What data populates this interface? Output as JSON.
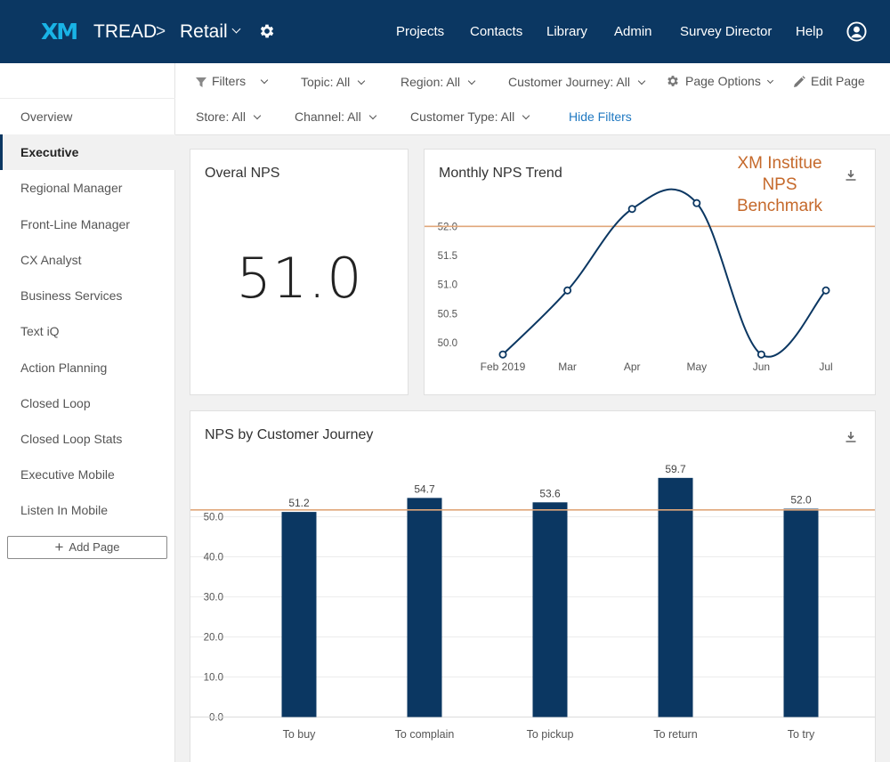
{
  "header": {
    "logo": "XM",
    "brand": "TREAD",
    "separator": ">",
    "project": "Retail",
    "nav": [
      "Projects",
      "Contacts",
      "Library",
      "Admin",
      "Survey Director",
      "Help"
    ]
  },
  "sidebar": {
    "items": [
      {
        "label": "Overview",
        "active": false
      },
      {
        "label": "Executive",
        "active": true
      },
      {
        "label": "Regional Manager",
        "active": false
      },
      {
        "label": "Front-Line Manager",
        "active": false
      },
      {
        "label": "CX Analyst",
        "active": false
      },
      {
        "label": "Business Services",
        "active": false
      },
      {
        "label": "Text iQ",
        "active": false
      },
      {
        "label": "Action Planning",
        "active": false
      },
      {
        "label": "Closed Loop",
        "active": false
      },
      {
        "label": "Closed Loop Stats",
        "active": false
      },
      {
        "label": "Executive Mobile",
        "active": false
      },
      {
        "label": "Listen In Mobile",
        "active": false
      }
    ],
    "add_page_label": "Add Page"
  },
  "filters": {
    "filters_label": "Filters",
    "topic": "Topic:  All",
    "region": "Region:  All",
    "journey": "Customer Journey:  All",
    "page_options": "Page Options",
    "edit_page": "Edit Page",
    "store": "Store:  All",
    "channel": "Channel:  All",
    "customer_type": "Customer Type:  All",
    "hide_filters": "Hide Filters"
  },
  "overall_nps": {
    "title": "Overal NPS",
    "value": "51.0"
  },
  "annotation": {
    "line1": "XM Institue",
    "line2": "NPS",
    "line3": "Benchmark"
  },
  "colors": {
    "navy": "#0b3762",
    "benchmark": "#e0a77a",
    "annotation": "#c5692b",
    "link": "#1f78c1"
  },
  "chart_data": [
    {
      "type": "line",
      "title": "Monthly NPS Trend",
      "categories": [
        "Feb 2019",
        "Mar",
        "Apr",
        "May",
        "Jun",
        "Jul"
      ],
      "values": [
        49.8,
        50.9,
        52.3,
        52.4,
        49.8,
        50.9
      ],
      "yticks": [
        50.0,
        50.5,
        51.0,
        51.5,
        52.0
      ],
      "ylim": [
        49.65,
        52.8
      ],
      "benchmark": 52.0,
      "grid": false,
      "legend": false
    },
    {
      "type": "bar",
      "title": "NPS by Customer Journey",
      "categories": [
        "To buy",
        "To complain",
        "To pickup",
        "To return",
        "To try"
      ],
      "values": [
        51.2,
        54.7,
        53.6,
        59.7,
        52.0
      ],
      "labels": [
        "51.2",
        "54.7",
        "53.6",
        "59.7",
        "52.0"
      ],
      "yticks": [
        0.0,
        10.0,
        20.0,
        30.0,
        40.0,
        50.0
      ],
      "ylim": [
        0,
        60
      ],
      "benchmark": 51.7,
      "grid": true,
      "legend": false
    }
  ]
}
